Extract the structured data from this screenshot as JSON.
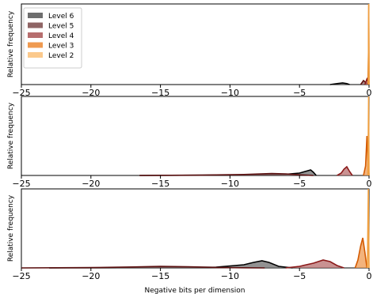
{
  "chart_data": {
    "type": "area",
    "xlabel": "Negative bits per dimension",
    "ylabel": "Relative frequency",
    "xlim": [
      -25,
      0
    ],
    "x_ticks": [
      -25,
      -20,
      -15,
      -10,
      -5,
      0
    ],
    "x_tick_labels": [
      "−25",
      "−20",
      "−15",
      "−10",
      "−5",
      "0"
    ],
    "legend": {
      "placement": "top-left",
      "entries": [
        {
          "label": "Level 6",
          "color": "#6e6e6e"
        },
        {
          "label": "Level 5",
          "color": "#8f6565"
        },
        {
          "label": "Level 4",
          "color": "#b76e6e"
        },
        {
          "label": "Level 3",
          "color": "#ef9a50"
        },
        {
          "label": "Level 2",
          "color": "#fbc98c"
        }
      ]
    },
    "subplots": [
      {
        "ylim": [
          0,
          1
        ],
        "series": [
          {
            "name": "Level 6",
            "line": "#000000",
            "fill": "#6e6e6e",
            "x": [
              -2.8,
              -2.3,
              -1.9,
              -1.6,
              -1.4
            ],
            "y": [
              0,
              0.012,
              0.02,
              0.012,
              0
            ]
          },
          {
            "name": "Level 5",
            "line": "#5a0f0f",
            "fill": "#8f6565",
            "x": [
              -0.6,
              -0.4,
              -0.2,
              -0.05
            ],
            "y": [
              0,
              0.05,
              0.02,
              0
            ]
          },
          {
            "name": "Level 4",
            "line": "#8b1a1a",
            "fill": "#b76e6e",
            "x": [
              -0.3,
              -0.15,
              -0.05,
              0
            ],
            "y": [
              0,
              0.07,
              0.03,
              0
            ]
          },
          {
            "name": "Level 3",
            "line": "#d45a00",
            "fill": "#ef9a50",
            "x": [
              -0.08,
              -0.04,
              -0.02,
              0
            ],
            "y": [
              0,
              0.4,
              1.0,
              0
            ]
          },
          {
            "name": "Level 2",
            "line": "#f0a040",
            "fill": "#fbc98c",
            "x": [
              -0.05,
              -0.02,
              0
            ],
            "y": [
              0,
              1.0,
              0
            ]
          }
        ]
      },
      {
        "ylim": [
          0,
          1
        ],
        "series": [
          {
            "name": "Level 6",
            "line": "#000000",
            "fill": "#6e6e6e",
            "x": [
              -16.5,
              -12,
              -8,
              -6,
              -5,
              -4.5,
              -4.2,
              -4.0,
              -3.8
            ],
            "y": [
              0,
              0.003,
              0.008,
              0.015,
              0.03,
              0.055,
              0.07,
              0.04,
              0
            ]
          },
          {
            "name": "Level 5",
            "line": "#5a0f0f",
            "fill": "#8f6565",
            "x": [
              -16.5,
              -12,
              -9,
              -7,
              -6,
              -5,
              -4
            ],
            "y": [
              0,
              0.004,
              0.012,
              0.025,
              0.02,
              0.008,
              0
            ]
          },
          {
            "name": "Level 4",
            "line": "#8b1a1a",
            "fill": "#b76e6e",
            "x": [
              -2.3,
              -2.0,
              -1.8,
              -1.6,
              -1.4,
              -1.2
            ],
            "y": [
              0,
              0.03,
              0.08,
              0.11,
              0.05,
              0
            ]
          },
          {
            "name": "Level 3",
            "line": "#d45a00",
            "fill": "#ef9a50",
            "x": [
              -0.4,
              -0.25,
              -0.15,
              -0.08,
              0
            ],
            "y": [
              0,
              0.12,
              0.5,
              0.2,
              0
            ]
          },
          {
            "name": "Level 2",
            "line": "#f0a040",
            "fill": "#fbc98c",
            "x": [
              -0.08,
              -0.03,
              0
            ],
            "y": [
              0,
              1.0,
              0
            ]
          }
        ]
      },
      {
        "ylim": [
          0,
          1
        ],
        "series": [
          {
            "name": "Level 6",
            "line": "#000000",
            "fill": "#6e6e6e",
            "x": [
              -23,
              -18,
              -14,
              -11,
              -9,
              -8.3,
              -7.7,
              -7.2,
              -6.5,
              -5.5
            ],
            "y": [
              0,
              0.003,
              0.005,
              0.01,
              0.04,
              0.07,
              0.09,
              0.07,
              0.02,
              0
            ]
          },
          {
            "name": "Level 5",
            "line": "#5a0f0f",
            "fill": "#8f6565",
            "x": [
              -25,
              -20,
              -17,
              -15,
              -13,
              -11,
              -9,
              -7.5
            ],
            "y": [
              0,
              0.004,
              0.012,
              0.02,
              0.015,
              0.006,
              0.002,
              0
            ]
          },
          {
            "name": "Level 4",
            "line": "#8b1a1a",
            "fill": "#b76e6e",
            "x": [
              -6,
              -5,
              -4,
              -3.3,
              -2.8,
              -2.3,
              -1.8
            ],
            "y": [
              0,
              0.02,
              0.06,
              0.1,
              0.08,
              0.03,
              0
            ]
          },
          {
            "name": "Level 3",
            "line": "#d45a00",
            "fill": "#ef9a50",
            "x": [
              -1.0,
              -0.8,
              -0.6,
              -0.45,
              -0.3,
              -0.15
            ],
            "y": [
              0,
              0.1,
              0.28,
              0.38,
              0.2,
              0
            ]
          },
          {
            "name": "Level 2",
            "line": "#f0a040",
            "fill": "#fbc98c",
            "x": [
              -0.12,
              -0.05,
              0
            ],
            "y": [
              0,
              1.0,
              0
            ]
          }
        ]
      }
    ]
  }
}
